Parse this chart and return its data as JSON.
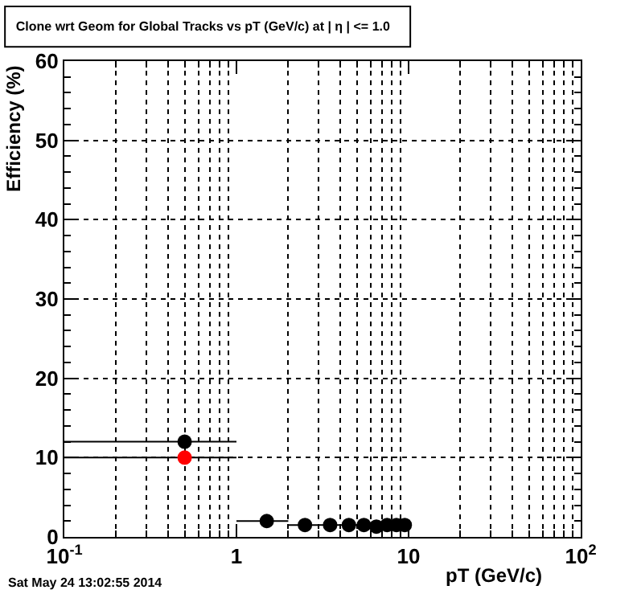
{
  "chart_data": {
    "type": "scatter",
    "title": "Clone wrt Geom for Global Tracks vs pT (GeV/c) at | η | <= 1.0",
    "xlabel": "pT (GeV/c)",
    "ylabel": "Efficiency (%)",
    "annotations": [
      "Sat May 24 13:02:55 2014"
    ],
    "log": "x",
    "xlim": [
      0.1,
      100
    ],
    "xticks": [
      {
        "value": 0.1,
        "label": "10$^{-1}$"
      },
      1,
      10,
      {
        "value": 100,
        "label": "10$^{2}$"
      }
    ],
    "ylim": [
      0,
      60
    ],
    "yticks": [
      0,
      10,
      20,
      30,
      40,
      50,
      60
    ],
    "grid": true,
    "marker": "circle",
    "series": [
      {
        "color": "#000000",
        "x": [
          0.5,
          1.5,
          2.5,
          3.5,
          4.5,
          5.5,
          6.5,
          7.5,
          8.5,
          9.5
        ],
        "values": [
          12,
          2,
          1.5,
          1.5,
          1.5,
          1.5,
          1.3,
          1.5,
          1.5,
          1.5
        ],
        "xerrors": [
          [
            0.1,
            1
          ],
          0.5,
          0.5,
          0.5,
          0.5,
          0.5,
          0.5,
          0.5,
          0.5,
          0.5
        ]
      },
      {
        "color": "#ff0000",
        "x": [
          0.5
        ],
        "values": [
          10
        ],
        "xerrors": [
          [
            0.1,
            1
          ]
        ]
      }
    ]
  }
}
